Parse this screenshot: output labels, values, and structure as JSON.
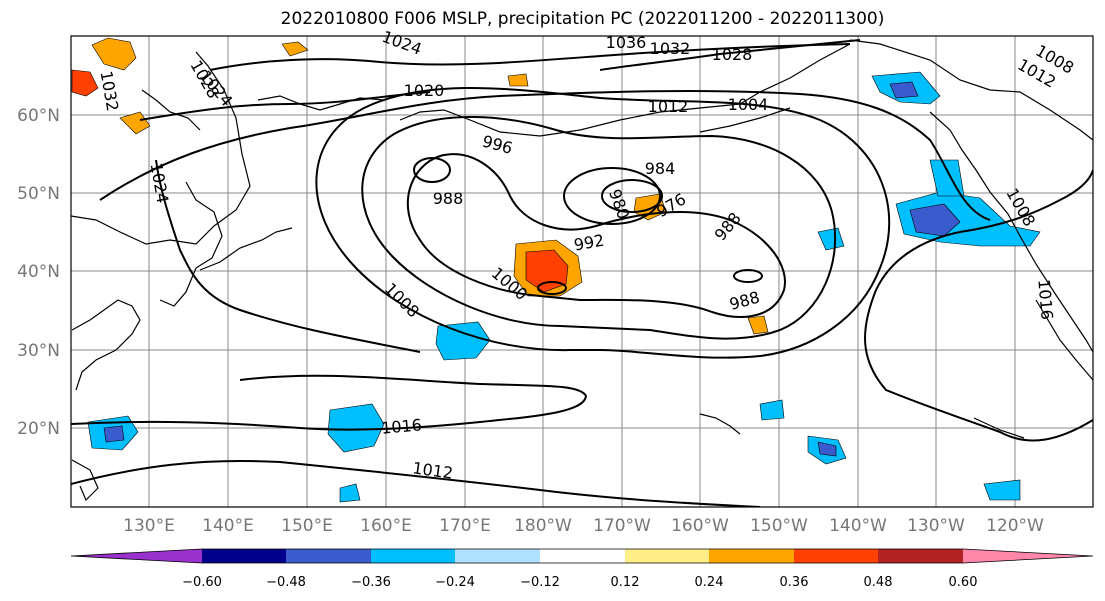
{
  "title": "2022010800 F006 MSLP, precipitation PC (2022011200 - 2022011300)",
  "lat_ticks": [
    "60°N",
    "50°N",
    "40°N",
    "30°N",
    "20°N"
  ],
  "lon_ticks": [
    "130°E",
    "140°E",
    "150°E",
    "160°E",
    "170°E",
    "180°W",
    "170°W",
    "160°W",
    "150°W",
    "140°W",
    "130°W",
    "120°W"
  ],
  "colorbar": {
    "colors": [
      "#9932cc",
      "#00008b",
      "#3a5bcd",
      "#00bfff",
      "#b0e2ff",
      "#ffffff",
      "#ffee88",
      "#ffa500",
      "#ff4000",
      "#b22222",
      "#ff88aa"
    ],
    "labels": [
      "−0.60",
      "−0.48",
      "−0.36",
      "−0.24",
      "−0.12",
      "0.12",
      "0.24",
      "0.36",
      "0.48",
      "0.60"
    ]
  },
  "isobar_labels": [
    "1036",
    "1032",
    "1028",
    "1024",
    "1020",
    "1012",
    "1004",
    "1008",
    "1012",
    "996",
    "984",
    "988",
    "980",
    "976",
    "992",
    "988",
    "1000",
    "1008",
    "988",
    "1024",
    "1008",
    "1016",
    "1016",
    "1012",
    "1032",
    "1028",
    "1024"
  ]
}
